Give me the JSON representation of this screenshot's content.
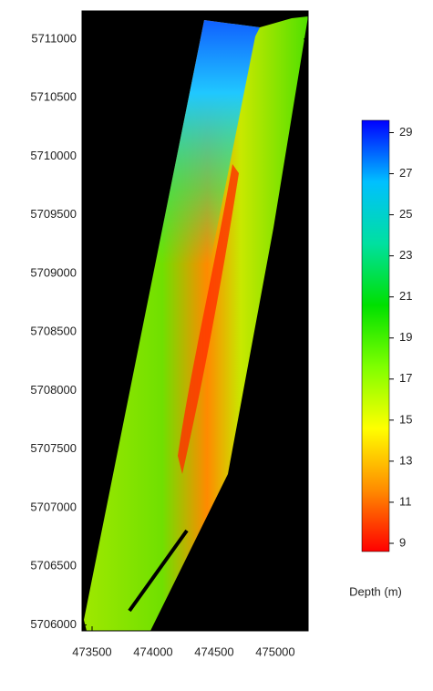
{
  "chart_data": {
    "type": "map",
    "xlim": [
      473418,
      475269
    ],
    "xticks": [
      473500,
      474000,
      474500,
      475000
    ],
    "ylim": [
      5705950,
      5711240
    ],
    "yticks": [
      5706000,
      5706500,
      5707000,
      5707500,
      5708000,
      5708500,
      5709000,
      5709500,
      5710000,
      5710500,
      5711000
    ],
    "colorbar": {
      "label": "Depth (m)",
      "lim": [
        8.6,
        29.6
      ],
      "ticks": [
        9,
        11,
        13,
        15,
        17,
        19,
        21,
        23,
        25,
        27,
        29
      ],
      "colors": [
        "#ff0000",
        "#ff8c00",
        "#ffff00",
        "#7fff00",
        "#00e000",
        "#00e0a0",
        "#00c0ff",
        "#0000ff"
      ]
    }
  }
}
